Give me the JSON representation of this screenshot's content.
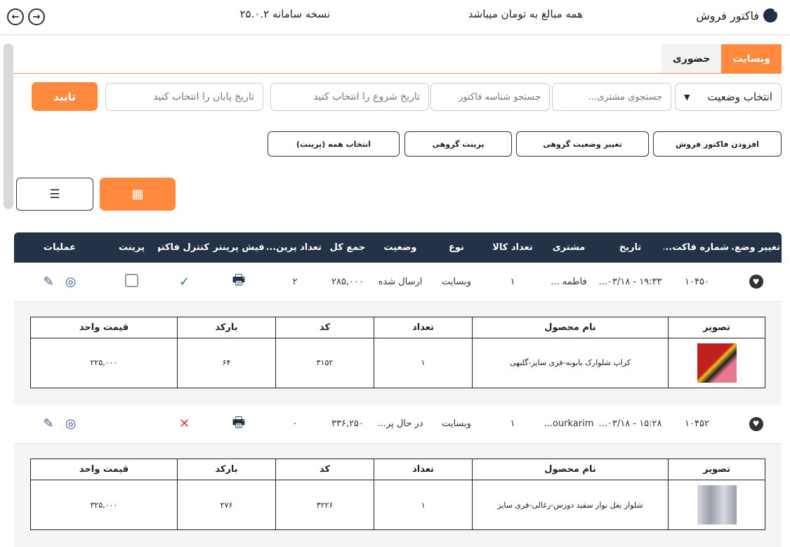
{
  "header": {
    "title": "فاکتور فروش",
    "currency_note": "همه مبالغ به تومان میباشد",
    "version": "نسخه سامانه ۲۵.۰.۲",
    "forward_icon": "arrow-right-circle",
    "back_icon": "arrow-left-circle"
  },
  "tabs": [
    {
      "label": "وبسایت",
      "active": true
    },
    {
      "label": "حضوری",
      "active": false
    }
  ],
  "filters": {
    "status_select": "انتخاب وضعیت",
    "customer_placeholder": "جستجوی مشتری...",
    "invoice_placeholder": "جستجو شناسه فاکتور",
    "start_date_placeholder": "تاریخ شروع را انتخاب کنید",
    "end_date_placeholder": "تاریخ پایان را انتخاب کنید",
    "confirm": "تایید"
  },
  "actions": {
    "add": "افزودن فاکتور فروش",
    "bulk_status": "تغییر وضعیت گروهی",
    "bulk_print": "پرینت گروهی",
    "select_all": "انتخاب همه (پرینت)"
  },
  "colors": {
    "accent": "#ff8a3d",
    "header_bg": "#243247",
    "success": "#2e7d32",
    "danger": "#e53935"
  },
  "table": {
    "columns": [
      "تغییر وضع...",
      "شماره فاکت...",
      "تاریخ",
      "مشتری",
      "تعداد کالا",
      "نوع",
      "وضعیت",
      "جمع کل",
      "تعداد پرین...",
      "فیش پرینتر",
      "کنترل فاکتور",
      "پرینت",
      "عملیات"
    ],
    "sub_columns": [
      "تصویر",
      "نام محصول",
      "تعداد",
      "کد",
      "بارکد",
      "قیمت واحد"
    ],
    "rows": [
      {
        "number": "۱۰۴۵۰",
        "date": "۱۹:۳۳ - ۰۳/۱۸...",
        "customer": "فاطمه ...",
        "item_count": "۱",
        "type": "وبسایت",
        "status": "ارسال شده",
        "total": "۲۸۵,۰۰۰",
        "print_count": "۲",
        "control": "✓",
        "control_ok": true,
        "show_checkbox": true,
        "items": [
          {
            "name": "کراپ شلوارک بابونه-فری سایز-گلبهی",
            "qty": "۱",
            "code": "۳۱۵۲",
            "barcode": "۶۴",
            "price": "۲۲۵,۰۰۰"
          }
        ]
      },
      {
        "number": "۱۰۴۵۲",
        "date": "۱۵:۲۸ - ۰۳/۱۸...",
        "customer": "ourkarim...",
        "item_count": "۱",
        "type": "وبسایت",
        "status": "در حال پر...",
        "total": "۳۳۶,۲۵۰",
        "print_count": "۰",
        "control": "✕",
        "control_ok": false,
        "show_checkbox": false,
        "items": [
          {
            "name": "شلوار بغل نوار سفید دورس-زغالی-فری سایز",
            "qty": "۱",
            "code": "۳۲۲۶",
            "barcode": "۲۷۶",
            "price": "۳۲۵,۰۰۰"
          }
        ]
      }
    ]
  }
}
